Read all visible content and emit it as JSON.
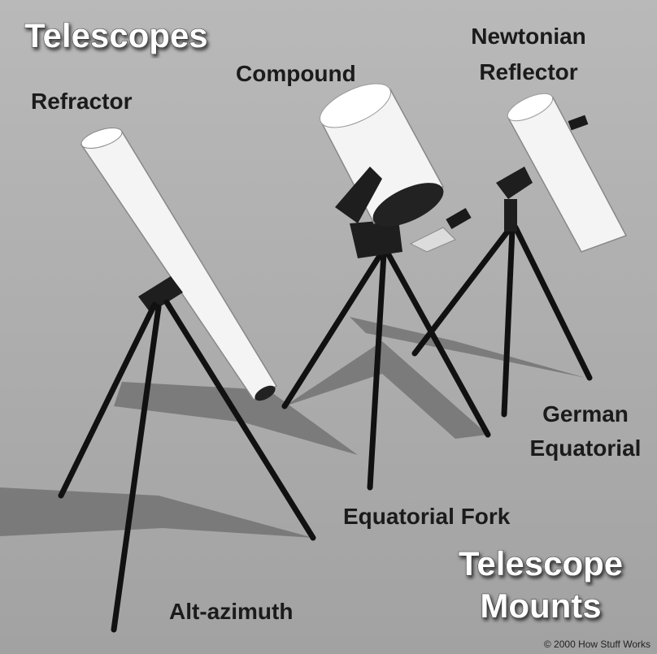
{
  "title": "Telescopes",
  "telescopes": [
    {
      "lines": [
        "Refractor"
      ]
    },
    {
      "lines": [
        "Compound"
      ]
    },
    {
      "lines": [
        "Newtonian",
        "Reflector"
      ]
    }
  ],
  "mounts": [
    {
      "lines": [
        "Alt-azimuth"
      ]
    },
    {
      "lines": [
        "Equatorial Fork"
      ]
    },
    {
      "lines": [
        "German",
        "Equatorial"
      ]
    }
  ],
  "mounts_title": {
    "lines": [
      "Telescope",
      "Mounts"
    ]
  },
  "copyright": "© 2000 How Stuff Works"
}
